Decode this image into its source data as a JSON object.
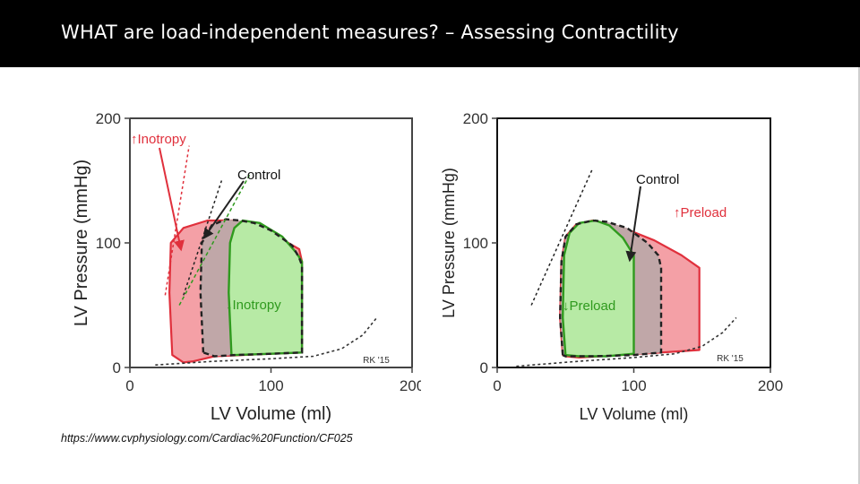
{
  "slide": {
    "title": "WHAT are load-independent measures? – Assessing Contractility",
    "source_url": "https://www.cvphysiology.com/Cardiac%20Function/CF025"
  },
  "colors": {
    "red_fill": "#f4a0a6",
    "red_line": "#e0303c",
    "green_fill": "#b7eaa5",
    "green_line": "#2f9a1e",
    "gray_fill": "#c0a7a8",
    "dark_line": "#222222"
  },
  "chart_data": [
    {
      "type": "line",
      "subtype": "pressure-volume loops",
      "xlabel": "LV Volume (ml)",
      "ylabel": "LV Pressure (mmHg)",
      "xlim": [
        0,
        200
      ],
      "ylim": [
        0,
        200
      ],
      "xticks": [
        "0",
        "100",
        "200"
      ],
      "yticks": [
        "0",
        "100",
        "200"
      ],
      "credit": "RK '15",
      "labels": {
        "increase": "↑Inotropy",
        "control": "Control",
        "decrease": "↓Inotropy"
      },
      "series": [
        {
          "name": "↑Inotropy",
          "color": "#e0303c",
          "loop": [
            [
              30,
              10
            ],
            [
              28,
              60
            ],
            [
              29,
              100
            ],
            [
              38,
              112
            ],
            [
              55,
              118
            ],
            [
              75,
              118
            ],
            [
              100,
              108
            ],
            [
              120,
              95
            ],
            [
              122,
              85
            ],
            [
              122,
              60
            ],
            [
              122,
              12
            ],
            [
              100,
              11
            ],
            [
              60,
              9
            ],
            [
              45,
              5
            ],
            [
              38,
              4
            ],
            [
              30,
              10
            ]
          ],
          "espvr": [
            [
              25,
              58
            ],
            [
              42,
              178
            ]
          ]
        },
        {
          "name": "Control",
          "color": "#222222",
          "loop": [
            [
              52,
              12
            ],
            [
              50,
              60
            ],
            [
              51,
              100
            ],
            [
              58,
              114
            ],
            [
              68,
              119
            ],
            [
              78,
              118
            ],
            [
              88,
              116
            ],
            [
              100,
              110
            ],
            [
              115,
              98
            ],
            [
              120,
              88
            ],
            [
              122,
              82
            ],
            [
              122,
              50
            ],
            [
              122,
              12
            ],
            [
              100,
              11
            ],
            [
              75,
              10
            ],
            [
              60,
              9
            ],
            [
              52,
              12
            ]
          ],
          "espvr": [
            [
              38,
              58
            ],
            [
              65,
              150
            ]
          ]
        },
        {
          "name": "↓Inotropy",
          "color": "#2f9a1e",
          "loop": [
            [
              72,
              10
            ],
            [
              70,
              60
            ],
            [
              71,
              100
            ],
            [
              74,
              112
            ],
            [
              80,
              118
            ],
            [
              92,
              116
            ],
            [
              108,
              105
            ],
            [
              118,
              92
            ],
            [
              122,
              85
            ],
            [
              122,
              60
            ],
            [
              122,
              12
            ],
            [
              100,
              11
            ],
            [
              75,
              10
            ],
            [
              72,
              10
            ]
          ],
          "espvr": [
            [
              35,
              50
            ],
            [
              85,
              155
            ]
          ]
        }
      ],
      "edpvr": [
        [
          18,
          2
        ],
        [
          60,
          5
        ],
        [
          100,
          7
        ],
        [
          130,
          9
        ],
        [
          150,
          15
        ],
        [
          165,
          26
        ],
        [
          175,
          40
        ]
      ]
    },
    {
      "type": "line",
      "subtype": "pressure-volume loops",
      "xlabel": "LV Volume (ml)",
      "ylabel": "LV Pressure (mmHg)",
      "xlim": [
        0,
        200
      ],
      "ylim": [
        0,
        200
      ],
      "xticks": [
        "0",
        "100",
        "200"
      ],
      "yticks": [
        "0",
        "100",
        "200"
      ],
      "credit": "RK '15",
      "labels": {
        "increase": "↑Preload",
        "control": "Control",
        "decrease": "↓Preload"
      },
      "series": [
        {
          "name": "↑Preload",
          "color": "#e0303c",
          "loop": [
            [
              48,
              10
            ],
            [
              46,
              40
            ],
            [
              47,
              85
            ],
            [
              50,
              105
            ],
            [
              58,
              115
            ],
            [
              70,
              118
            ],
            [
              90,
              113
            ],
            [
              115,
              102
            ],
            [
              135,
              90
            ],
            [
              148,
              80
            ],
            [
              148,
              55
            ],
            [
              148,
              14
            ],
            [
              120,
              12
            ],
            [
              90,
              10
            ],
            [
              60,
              8
            ],
            [
              50,
              9
            ],
            [
              48,
              10
            ]
          ],
          "espvr": [
            [
              25,
              50
            ],
            [
              70,
              160
            ]
          ]
        },
        {
          "name": "Control",
          "color": "#222222",
          "loop": [
            [
              48,
              10
            ],
            [
              46,
              40
            ],
            [
              47,
              85
            ],
            [
              50,
              105
            ],
            [
              58,
              115
            ],
            [
              70,
              118
            ],
            [
              80,
              117
            ],
            [
              95,
              112
            ],
            [
              110,
              100
            ],
            [
              118,
              90
            ],
            [
              120,
              80
            ],
            [
              120,
              50
            ],
            [
              120,
              12
            ],
            [
              100,
              10
            ],
            [
              70,
              9
            ],
            [
              50,
              9
            ],
            [
              48,
              10
            ]
          ],
          "espvr": [
            [
              25,
              50
            ],
            [
              70,
              160
            ]
          ]
        },
        {
          "name": "↓Preload",
          "color": "#2f9a1e",
          "loop": [
            [
              50,
              10
            ],
            [
              48,
              40
            ],
            [
              49,
              90
            ],
            [
              53,
              108
            ],
            [
              60,
              116
            ],
            [
              72,
              118
            ],
            [
              82,
              114
            ],
            [
              92,
              104
            ],
            [
              100,
              90
            ],
            [
              100,
              60
            ],
            [
              100,
              11
            ],
            [
              80,
              9
            ],
            [
              60,
              9
            ],
            [
              50,
              10
            ]
          ],
          "espvr": [
            [
              25,
              50
            ],
            [
              70,
              160
            ]
          ]
        }
      ],
      "edpvr": [
        [
          14,
          1
        ],
        [
          60,
          5
        ],
        [
          100,
          8
        ],
        [
          130,
          11
        ],
        [
          150,
          17
        ],
        [
          165,
          28
        ],
        [
          175,
          40
        ]
      ]
    }
  ]
}
